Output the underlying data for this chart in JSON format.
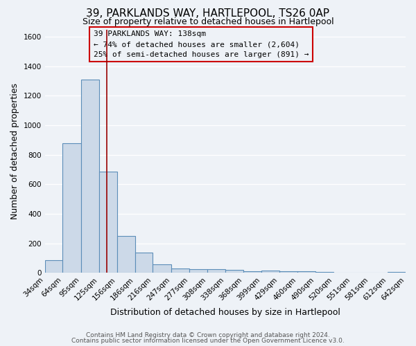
{
  "title": "39, PARKLANDS WAY, HARTLEPOOL, TS26 0AP",
  "subtitle": "Size of property relative to detached houses in Hartlepool",
  "xlabel": "Distribution of detached houses by size in Hartlepool",
  "ylabel": "Number of detached properties",
  "bin_edges": [
    34,
    64,
    95,
    125,
    156,
    186,
    216,
    247,
    277,
    308,
    338,
    368,
    399,
    429,
    460,
    490,
    520,
    551,
    581,
    612,
    642
  ],
  "bar_heights": [
    88,
    880,
    1310,
    686,
    250,
    140,
    60,
    30,
    25,
    25,
    22,
    10,
    18,
    10,
    10,
    8,
    0,
    0,
    0,
    5
  ],
  "bar_face_color": "#ccd9e8",
  "bar_edge_color": "#5b8db8",
  "tick_labels": [
    "34sqm",
    "64sqm",
    "95sqm",
    "125sqm",
    "156sqm",
    "186sqm",
    "216sqm",
    "247sqm",
    "277sqm",
    "308sqm",
    "338sqm",
    "368sqm",
    "399sqm",
    "429sqm",
    "460sqm",
    "490sqm",
    "520sqm",
    "551sqm",
    "581sqm",
    "612sqm",
    "642sqm"
  ],
  "ylim": [
    0,
    1650
  ],
  "yticks": [
    0,
    200,
    400,
    600,
    800,
    1000,
    1200,
    1400,
    1600
  ],
  "property_line_x": 138,
  "property_line_color": "#990000",
  "annotation_line1": "39 PARKLANDS WAY: 138sqm",
  "annotation_line2": "← 74% of detached houses are smaller (2,604)",
  "annotation_line3": "25% of semi-detached houses are larger (891) →",
  "footer1": "Contains HM Land Registry data © Crown copyright and database right 2024.",
  "footer2": "Contains public sector information licensed under the Open Government Licence v3.0.",
  "bg_color": "#eef2f7",
  "grid_color": "#ffffff",
  "title_fontsize": 11,
  "subtitle_fontsize": 9,
  "axis_label_fontsize": 9,
  "tick_fontsize": 7.5,
  "annotation_fontsize": 8,
  "footer_fontsize": 6.5
}
